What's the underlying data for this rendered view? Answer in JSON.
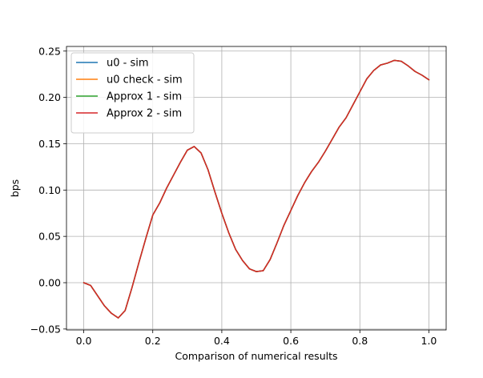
{
  "chart_data": {
    "type": "line",
    "title": "",
    "xlabel": "Comparison of numerical results",
    "ylabel": "bps",
    "xlim": [
      -0.05,
      1.05
    ],
    "ylim": [
      -0.051,
      0.255
    ],
    "xticks": [
      0.0,
      0.2,
      0.4,
      0.6,
      0.8,
      1.0
    ],
    "xtick_labels": [
      "0.0",
      "0.2",
      "0.4",
      "0.6",
      "0.8",
      "1.0"
    ],
    "yticks": [
      -0.05,
      0.0,
      0.05,
      0.1,
      0.15,
      0.2,
      0.25
    ],
    "ytick_labels": [
      "−0.05",
      "0.00",
      "0.05",
      "0.10",
      "0.15",
      "0.20",
      "0.25"
    ],
    "grid": true,
    "legend_position": "top-left",
    "x": [
      0.0,
      0.02,
      0.04,
      0.06,
      0.08,
      0.1,
      0.12,
      0.14,
      0.16,
      0.18,
      0.2,
      0.22,
      0.24,
      0.26,
      0.28,
      0.3,
      0.32,
      0.34,
      0.36,
      0.38,
      0.4,
      0.42,
      0.44,
      0.46,
      0.48,
      0.5,
      0.52,
      0.54,
      0.56,
      0.58,
      0.6,
      0.62,
      0.64,
      0.66,
      0.68,
      0.7,
      0.72,
      0.74,
      0.76,
      0.78,
      0.8,
      0.82,
      0.84,
      0.86,
      0.88,
      0.9,
      0.92,
      0.94,
      0.96,
      0.98,
      1.0
    ],
    "series": [
      {
        "name": "u0 - sim",
        "color": "#1f77b4",
        "values": [
          0.0,
          -0.003,
          -0.014,
          -0.025,
          -0.033,
          -0.038,
          -0.03,
          -0.005,
          0.022,
          0.048,
          0.073,
          0.086,
          0.102,
          0.116,
          0.13,
          0.143,
          0.147,
          0.14,
          0.122,
          0.098,
          0.075,
          0.054,
          0.036,
          0.024,
          0.015,
          0.012,
          0.013,
          0.025,
          0.043,
          0.062,
          0.078,
          0.094,
          0.108,
          0.12,
          0.13,
          0.142,
          0.155,
          0.168,
          0.178,
          0.192,
          0.206,
          0.22,
          0.229,
          0.235,
          0.237,
          0.24,
          0.239,
          0.234,
          0.228,
          0.224,
          0.219
        ]
      },
      {
        "name": "u0 check - sim",
        "color": "#ff7f0e",
        "values": [
          0.0,
          -0.003,
          -0.014,
          -0.025,
          -0.033,
          -0.038,
          -0.03,
          -0.005,
          0.022,
          0.048,
          0.073,
          0.086,
          0.102,
          0.116,
          0.13,
          0.143,
          0.147,
          0.14,
          0.122,
          0.098,
          0.075,
          0.054,
          0.036,
          0.024,
          0.015,
          0.012,
          0.013,
          0.025,
          0.043,
          0.062,
          0.078,
          0.094,
          0.108,
          0.12,
          0.13,
          0.142,
          0.155,
          0.168,
          0.178,
          0.192,
          0.206,
          0.22,
          0.229,
          0.235,
          0.237,
          0.24,
          0.239,
          0.234,
          0.228,
          0.224,
          0.219
        ]
      },
      {
        "name": "Approx 1 - sim",
        "color": "#2ca02c",
        "values": [
          0.0,
          -0.003,
          -0.014,
          -0.025,
          -0.033,
          -0.038,
          -0.03,
          -0.005,
          0.022,
          0.048,
          0.073,
          0.086,
          0.102,
          0.116,
          0.13,
          0.143,
          0.147,
          0.14,
          0.122,
          0.098,
          0.075,
          0.054,
          0.036,
          0.024,
          0.015,
          0.012,
          0.013,
          0.025,
          0.043,
          0.062,
          0.078,
          0.094,
          0.108,
          0.12,
          0.13,
          0.142,
          0.155,
          0.168,
          0.178,
          0.192,
          0.206,
          0.22,
          0.229,
          0.235,
          0.237,
          0.24,
          0.239,
          0.234,
          0.228,
          0.224,
          0.219
        ]
      },
      {
        "name": "Approx 2 - sim",
        "color": "#d62728",
        "values": [
          0.0,
          -0.003,
          -0.014,
          -0.025,
          -0.033,
          -0.038,
          -0.03,
          -0.005,
          0.022,
          0.048,
          0.073,
          0.086,
          0.102,
          0.116,
          0.13,
          0.143,
          0.147,
          0.14,
          0.122,
          0.098,
          0.075,
          0.054,
          0.036,
          0.024,
          0.015,
          0.012,
          0.013,
          0.025,
          0.043,
          0.062,
          0.078,
          0.094,
          0.108,
          0.12,
          0.13,
          0.142,
          0.155,
          0.168,
          0.178,
          0.192,
          0.206,
          0.22,
          0.229,
          0.235,
          0.237,
          0.24,
          0.239,
          0.234,
          0.228,
          0.224,
          0.219
        ]
      }
    ]
  }
}
